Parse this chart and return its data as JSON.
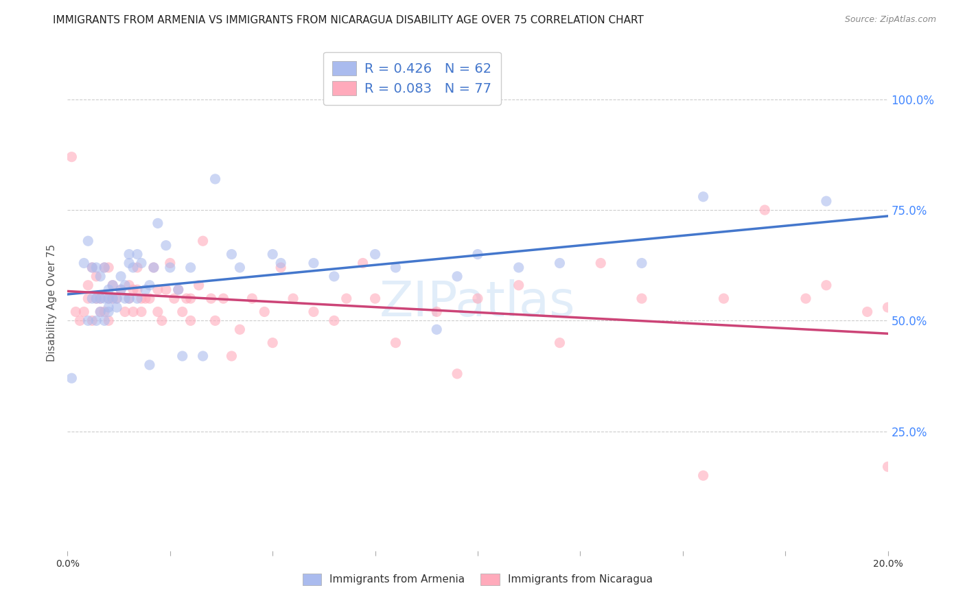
{
  "title": "IMMIGRANTS FROM ARMENIA VS IMMIGRANTS FROM NICARAGUA DISABILITY AGE OVER 75 CORRELATION CHART",
  "source": "Source: ZipAtlas.com",
  "ylabel": "Disability Age Over 75",
  "xlim": [
    0.0,
    0.2
  ],
  "ylim": [
    -0.02,
    1.1
  ],
  "yticks": [
    0.0,
    0.25,
    0.5,
    0.75,
    1.0
  ],
  "ytick_labels": [
    "",
    "25.0%",
    "50.0%",
    "75.0%",
    "100.0%"
  ],
  "xticks": [
    0.0,
    0.025,
    0.05,
    0.075,
    0.1,
    0.125,
    0.15,
    0.175,
    0.2
  ],
  "grid_yticks": [
    0.25,
    0.5,
    0.75,
    1.0
  ],
  "armenia_color": "#aabbee",
  "nicaragua_color": "#ffaabb",
  "trendline_armenia_color": "#4477cc",
  "trendline_nicaragua_color": "#cc4477",
  "legend_R_armenia": "R = 0.426",
  "legend_N_armenia": "N = 62",
  "legend_R_nicaragua": "R = 0.083",
  "legend_N_nicaragua": "N = 77",
  "watermark": "ZIPatlas",
  "armenia_x": [
    0.001,
    0.004,
    0.005,
    0.005,
    0.006,
    0.006,
    0.007,
    0.007,
    0.007,
    0.008,
    0.008,
    0.008,
    0.009,
    0.009,
    0.009,
    0.01,
    0.01,
    0.01,
    0.01,
    0.011,
    0.011,
    0.012,
    0.012,
    0.013,
    0.013,
    0.014,
    0.014,
    0.015,
    0.015,
    0.015,
    0.016,
    0.017,
    0.017,
    0.018,
    0.019,
    0.02,
    0.02,
    0.021,
    0.022,
    0.024,
    0.025,
    0.027,
    0.028,
    0.03,
    0.033,
    0.036,
    0.04,
    0.042,
    0.05,
    0.052,
    0.06,
    0.065,
    0.075,
    0.08,
    0.09,
    0.095,
    0.1,
    0.11,
    0.12,
    0.14,
    0.155,
    0.185
  ],
  "armenia_y": [
    0.37,
    0.63,
    0.5,
    0.68,
    0.55,
    0.62,
    0.5,
    0.55,
    0.62,
    0.52,
    0.55,
    0.6,
    0.55,
    0.62,
    0.5,
    0.52,
    0.55,
    0.53,
    0.57,
    0.58,
    0.55,
    0.55,
    0.53,
    0.6,
    0.57,
    0.55,
    0.58,
    0.63,
    0.65,
    0.55,
    0.62,
    0.65,
    0.55,
    0.63,
    0.57,
    0.4,
    0.58,
    0.62,
    0.72,
    0.67,
    0.62,
    0.57,
    0.42,
    0.62,
    0.42,
    0.82,
    0.65,
    0.62,
    0.65,
    0.63,
    0.63,
    0.6,
    0.65,
    0.62,
    0.48,
    0.6,
    0.65,
    0.62,
    0.63,
    0.63,
    0.78,
    0.77
  ],
  "nicaragua_x": [
    0.001,
    0.002,
    0.003,
    0.004,
    0.005,
    0.005,
    0.006,
    0.006,
    0.007,
    0.007,
    0.008,
    0.008,
    0.009,
    0.009,
    0.01,
    0.01,
    0.01,
    0.011,
    0.011,
    0.012,
    0.013,
    0.014,
    0.015,
    0.015,
    0.016,
    0.016,
    0.017,
    0.017,
    0.018,
    0.018,
    0.019,
    0.02,
    0.021,
    0.022,
    0.022,
    0.023,
    0.024,
    0.025,
    0.026,
    0.027,
    0.028,
    0.029,
    0.03,
    0.03,
    0.032,
    0.033,
    0.035,
    0.036,
    0.038,
    0.04,
    0.042,
    0.045,
    0.048,
    0.05,
    0.052,
    0.055,
    0.06,
    0.065,
    0.068,
    0.072,
    0.075,
    0.08,
    0.09,
    0.095,
    0.1,
    0.11,
    0.12,
    0.13,
    0.14,
    0.155,
    0.16,
    0.17,
    0.18,
    0.185,
    0.195,
    0.2,
    0.2
  ],
  "nicaragua_y": [
    0.87,
    0.52,
    0.5,
    0.52,
    0.55,
    0.58,
    0.5,
    0.62,
    0.55,
    0.6,
    0.52,
    0.55,
    0.52,
    0.62,
    0.55,
    0.5,
    0.62,
    0.55,
    0.58,
    0.55,
    0.57,
    0.52,
    0.55,
    0.58,
    0.52,
    0.57,
    0.57,
    0.62,
    0.52,
    0.55,
    0.55,
    0.55,
    0.62,
    0.52,
    0.57,
    0.5,
    0.57,
    0.63,
    0.55,
    0.57,
    0.52,
    0.55,
    0.55,
    0.5,
    0.58,
    0.68,
    0.55,
    0.5,
    0.55,
    0.42,
    0.48,
    0.55,
    0.52,
    0.45,
    0.62,
    0.55,
    0.52,
    0.5,
    0.55,
    0.63,
    0.55,
    0.45,
    0.52,
    0.38,
    0.55,
    0.58,
    0.45,
    0.63,
    0.55,
    0.15,
    0.55,
    0.75,
    0.55,
    0.58,
    0.52,
    0.53,
    0.17
  ],
  "background_color": "#ffffff",
  "grid_color": "#cccccc",
  "title_fontsize": 11,
  "axis_label_fontsize": 11,
  "tick_label_fontsize": 10,
  "legend_fontsize": 14,
  "dot_size": 120,
  "dot_alpha": 0.6
}
